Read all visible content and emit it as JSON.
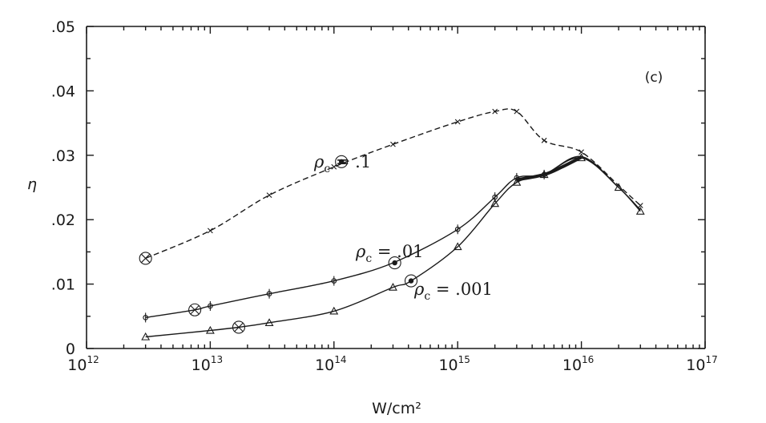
{
  "chart_data": {
    "type": "line",
    "xscale": "log",
    "xlim": [
      1000000000000.0,
      1e+17
    ],
    "ylim": [
      0,
      0.05
    ],
    "grid": false,
    "xlabel": "W/cm²",
    "ylabel": "η",
    "panel_label": "(c)",
    "x_tick_labels": [
      {
        "value": 1000000000000.0,
        "base": "10",
        "exp": "12"
      },
      {
        "value": 10000000000000.0,
        "base": "10",
        "exp": "13"
      },
      {
        "value": 100000000000000.0,
        "base": "10",
        "exp": "14"
      },
      {
        "value": 1000000000000000.0,
        "base": "10",
        "exp": "15"
      },
      {
        "value": 1e+16,
        "base": "10",
        "exp": "16"
      },
      {
        "value": 1e+17,
        "base": "10",
        "exp": "17"
      }
    ],
    "y_tick_labels": [
      {
        "value": 0,
        "label": "0"
      },
      {
        "value": 0.01,
        "label": ".01"
      },
      {
        "value": 0.02,
        "label": ".02"
      },
      {
        "value": 0.03,
        "label": ".03"
      },
      {
        "value": 0.04,
        "label": ".04"
      },
      {
        "value": 0.05,
        "label": ".05"
      }
    ],
    "series": [
      {
        "name": "ρc = .1",
        "label_prefix": "ρ",
        "label_sub": "c",
        "label_value": " = .1",
        "style": "dashed",
        "marker": "x",
        "x": [
          3000000000000.0,
          10000000000000.0,
          30000000000000.0,
          100000000000000.0,
          300000000000000.0,
          1000000000000000.0,
          2000000000000000.0,
          3000000000000000.0,
          5000000000000000.0,
          1e+16,
          2e+16,
          3e+16
        ],
        "y": [
          0.014,
          0.0183,
          0.0238,
          0.0282,
          0.0317,
          0.0352,
          0.0368,
          0.0368,
          0.0323,
          0.0305,
          0.0253,
          0.0222
        ],
        "marked_x": [
          10000000000000.0,
          30000000000000.0,
          100000000000000.0,
          300000000000000.0,
          1000000000000000.0,
          2000000000000000.0,
          3000000000000000.0,
          5000000000000000.0,
          1e+16,
          3e+16
        ],
        "special_points": [
          {
            "x": 3000000000000.0,
            "y": 0.014,
            "kind": "circle-x"
          },
          {
            "x": 115000000000000.0,
            "y": 0.029,
            "kind": "circle-dot"
          }
        ]
      },
      {
        "name": "ρc = .01",
        "label_prefix": "ρ",
        "label_sub": "c",
        "label_value": " = .01",
        "style": "solid",
        "marker": "o",
        "x": [
          3000000000000.0,
          7500000000000.0,
          10000000000000.0,
          30000000000000.0,
          100000000000000.0,
          300000000000000.0,
          1000000000000000.0,
          2000000000000000.0,
          3000000000000000.0,
          5000000000000000.0,
          1e+16,
          2e+16,
          3e+16
        ],
        "y": [
          0.0048,
          0.006,
          0.0066,
          0.0085,
          0.0105,
          0.0133,
          0.0185,
          0.0235,
          0.0265,
          0.027,
          0.0298,
          0.025,
          0.0215
        ],
        "marked_x": [
          3000000000000.0,
          10000000000000.0,
          30000000000000.0,
          100000000000000.0,
          1000000000000000.0,
          2000000000000000.0,
          3000000000000000.0,
          5000000000000000.0
        ],
        "special_points": [
          {
            "x": 7500000000000.0,
            "y": 0.006,
            "kind": "circle-x"
          },
          {
            "x": 310000000000000.0,
            "y": 0.0133,
            "kind": "circle-dot"
          }
        ]
      },
      {
        "name": "ρc = .001",
        "label_prefix": "ρ",
        "label_sub": "c",
        "label_value": " = .001",
        "style": "solid",
        "marker": "triangle",
        "x": [
          3000000000000.0,
          10000000000000.0,
          17000000000000.0,
          30000000000000.0,
          100000000000000.0,
          300000000000000.0,
          420000000000000.0,
          1000000000000000.0,
          2000000000000000.0,
          3000000000000000.0,
          5000000000000000.0,
          1e+16,
          2e+16,
          3e+16
        ],
        "y": [
          0.0018,
          0.0028,
          0.0033,
          0.004,
          0.0058,
          0.0095,
          0.0105,
          0.0158,
          0.0225,
          0.0258,
          0.027,
          0.0296,
          0.025,
          0.0213
        ],
        "marked_x": [
          3000000000000.0,
          10000000000000.0,
          30000000000000.0,
          100000000000000.0,
          300000000000000.0,
          1000000000000000.0,
          2000000000000000.0,
          3000000000000000.0,
          5000000000000000.0,
          1e+16,
          2e+16,
          3e+16
        ],
        "special_points": [
          {
            "x": 17000000000000.0,
            "y": 0.0033,
            "kind": "circle-x"
          },
          {
            "x": 420000000000000.0,
            "y": 0.0105,
            "kind": "circle-dot"
          }
        ]
      }
    ]
  }
}
